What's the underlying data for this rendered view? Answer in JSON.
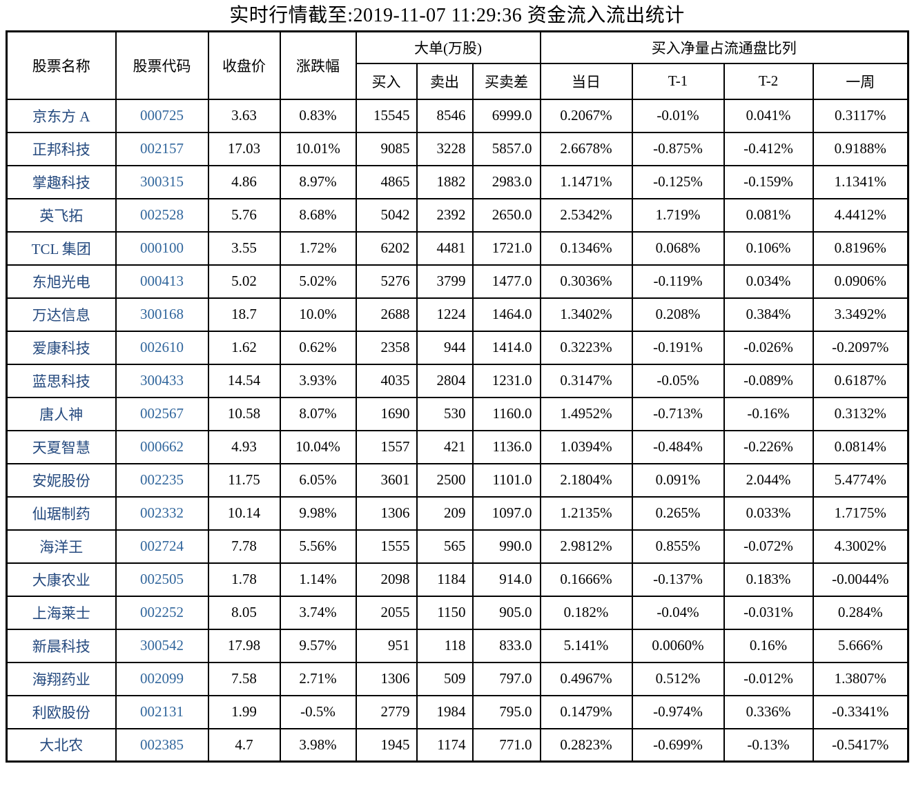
{
  "title": "实时行情截至:2019-11-07 11:29:36 资金流入流出统计",
  "colors": {
    "stock_name_text": "#24497e",
    "stock_code_text": "#31669c",
    "body_text": "#000000",
    "border": "#000000",
    "background": "#ffffff"
  },
  "table": {
    "headers": {
      "stock_name": "股票名称",
      "stock_code": "股票代码",
      "close_price": "收盘价",
      "change_pct": "涨跌幅",
      "large_orders_group": "大单(万股)",
      "buy": "买入",
      "sell": "卖出",
      "buy_sell_diff": "买卖差",
      "net_buy_ratio_group": "买入净量占流通盘比列",
      "today": "当日",
      "t_minus_1": "T-1",
      "t_minus_2": "T-2",
      "week": "一周"
    },
    "rows": [
      {
        "name": "京东方 A",
        "code": "000725",
        "close": "3.63",
        "change": "0.83%",
        "buy": "15545",
        "sell": "8546",
        "diff": "6999.0",
        "today": "0.2067%",
        "t1": "-0.01%",
        "t2": "0.041%",
        "week": "0.3117%"
      },
      {
        "name": "正邦科技",
        "code": "002157",
        "close": "17.03",
        "change": "10.01%",
        "buy": "9085",
        "sell": "3228",
        "diff": "5857.0",
        "today": "2.6678%",
        "t1": "-0.875%",
        "t2": "-0.412%",
        "week": "0.9188%"
      },
      {
        "name": "掌趣科技",
        "code": "300315",
        "close": "4.86",
        "change": "8.97%",
        "buy": "4865",
        "sell": "1882",
        "diff": "2983.0",
        "today": "1.1471%",
        "t1": "-0.125%",
        "t2": "-0.159%",
        "week": "1.1341%"
      },
      {
        "name": "英飞拓",
        "code": "002528",
        "close": "5.76",
        "change": "8.68%",
        "buy": "5042",
        "sell": "2392",
        "diff": "2650.0",
        "today": "2.5342%",
        "t1": "1.719%",
        "t2": "0.081%",
        "week": "4.4412%"
      },
      {
        "name": "TCL 集团",
        "code": "000100",
        "close": "3.55",
        "change": "1.72%",
        "buy": "6202",
        "sell": "4481",
        "diff": "1721.0",
        "today": "0.1346%",
        "t1": "0.068%",
        "t2": "0.106%",
        "week": "0.8196%"
      },
      {
        "name": "东旭光电",
        "code": "000413",
        "close": "5.02",
        "change": "5.02%",
        "buy": "5276",
        "sell": "3799",
        "diff": "1477.0",
        "today": "0.3036%",
        "t1": "-0.119%",
        "t2": "0.034%",
        "week": "0.0906%"
      },
      {
        "name": "万达信息",
        "code": "300168",
        "close": "18.7",
        "change": "10.0%",
        "buy": "2688",
        "sell": "1224",
        "diff": "1464.0",
        "today": "1.3402%",
        "t1": "0.208%",
        "t2": "0.384%",
        "week": "3.3492%"
      },
      {
        "name": "爱康科技",
        "code": "002610",
        "close": "1.62",
        "change": "0.62%",
        "buy": "2358",
        "sell": "944",
        "diff": "1414.0",
        "today": "0.3223%",
        "t1": "-0.191%",
        "t2": "-0.026%",
        "week": "-0.2097%"
      },
      {
        "name": "蓝思科技",
        "code": "300433",
        "close": "14.54",
        "change": "3.93%",
        "buy": "4035",
        "sell": "2804",
        "diff": "1231.0",
        "today": "0.3147%",
        "t1": "-0.05%",
        "t2": "-0.089%",
        "week": "0.6187%"
      },
      {
        "name": "唐人神",
        "code": "002567",
        "close": "10.58",
        "change": "8.07%",
        "buy": "1690",
        "sell": "530",
        "diff": "1160.0",
        "today": "1.4952%",
        "t1": "-0.713%",
        "t2": "-0.16%",
        "week": "0.3132%"
      },
      {
        "name": "天夏智慧",
        "code": "000662",
        "close": "4.93",
        "change": "10.04%",
        "buy": "1557",
        "sell": "421",
        "diff": "1136.0",
        "today": "1.0394%",
        "t1": "-0.484%",
        "t2": "-0.226%",
        "week": "0.0814%"
      },
      {
        "name": "安妮股份",
        "code": "002235",
        "close": "11.75",
        "change": "6.05%",
        "buy": "3601",
        "sell": "2500",
        "diff": "1101.0",
        "today": "2.1804%",
        "t1": "0.091%",
        "t2": "2.044%",
        "week": "5.4774%"
      },
      {
        "name": "仙琚制药",
        "code": "002332",
        "close": "10.14",
        "change": "9.98%",
        "buy": "1306",
        "sell": "209",
        "diff": "1097.0",
        "today": "1.2135%",
        "t1": "0.265%",
        "t2": "0.033%",
        "week": "1.7175%"
      },
      {
        "name": "海洋王",
        "code": "002724",
        "close": "7.78",
        "change": "5.56%",
        "buy": "1555",
        "sell": "565",
        "diff": "990.0",
        "today": "2.9812%",
        "t1": "0.855%",
        "t2": "-0.072%",
        "week": "4.3002%"
      },
      {
        "name": "大康农业",
        "code": "002505",
        "close": "1.78",
        "change": "1.14%",
        "buy": "2098",
        "sell": "1184",
        "diff": "914.0",
        "today": "0.1666%",
        "t1": "-0.137%",
        "t2": "0.183%",
        "week": "-0.0044%"
      },
      {
        "name": "上海莱士",
        "code": "002252",
        "close": "8.05",
        "change": "3.74%",
        "buy": "2055",
        "sell": "1150",
        "diff": "905.0",
        "today": "0.182%",
        "t1": "-0.04%",
        "t2": "-0.031%",
        "week": "0.284%"
      },
      {
        "name": "新晨科技",
        "code": "300542",
        "close": "17.98",
        "change": "9.57%",
        "buy": "951",
        "sell": "118",
        "diff": "833.0",
        "today": "5.141%",
        "t1": "0.0060%",
        "t2": "0.16%",
        "week": "5.666%"
      },
      {
        "name": "海翔药业",
        "code": "002099",
        "close": "7.58",
        "change": "2.71%",
        "buy": "1306",
        "sell": "509",
        "diff": "797.0",
        "today": "0.4967%",
        "t1": "0.512%",
        "t2": "-0.012%",
        "week": "1.3807%"
      },
      {
        "name": "利欧股份",
        "code": "002131",
        "close": "1.99",
        "change": "-0.5%",
        "buy": "2779",
        "sell": "1984",
        "diff": "795.0",
        "today": "0.1479%",
        "t1": "-0.974%",
        "t2": "0.336%",
        "week": "-0.3341%"
      },
      {
        "name": "大北农",
        "code": "002385",
        "close": "4.7",
        "change": "3.98%",
        "buy": "1945",
        "sell": "1174",
        "diff": "771.0",
        "today": "0.2823%",
        "t1": "-0.699%",
        "t2": "-0.13%",
        "week": "-0.5417%"
      }
    ]
  }
}
